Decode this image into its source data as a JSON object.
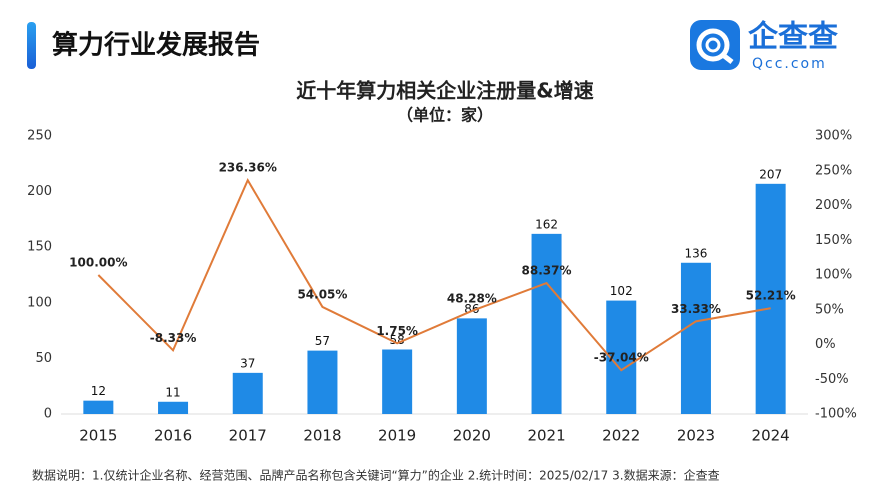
{
  "header": {
    "title": "算力行业发展报告",
    "logo_text": "企查查",
    "logo_url": "Qcc.com"
  },
  "chart_data": {
    "type": "bar_line",
    "title": "近十年算力相关企业注册量&增速",
    "subtitle": "（单位：家）",
    "categories": [
      "2015",
      "2016",
      "2017",
      "2018",
      "2019",
      "2020",
      "2021",
      "2022",
      "2023",
      "2024"
    ],
    "series": [
      {
        "name": "注册量",
        "type": "bar",
        "color": "#1f8ae6",
        "values": [
          12,
          11,
          37,
          57,
          58,
          86,
          162,
          102,
          136,
          207
        ]
      },
      {
        "name": "增速",
        "type": "line",
        "axis": "y2",
        "color": "#e07b39",
        "values": [
          100.0,
          -8.33,
          236.36,
          54.05,
          1.75,
          48.28,
          88.37,
          -37.04,
          33.33,
          52.21
        ],
        "value_labels": [
          "100.00%",
          "-8.33%",
          "236.36%",
          "54.05%",
          "1.75%",
          "48.28%",
          "88.37%",
          "-37.04%",
          "33.33%",
          "52.21%"
        ]
      }
    ],
    "ylim": [
      0,
      250
    ],
    "yticks": [
      0,
      50,
      100,
      150,
      200,
      250
    ],
    "y2lim": [
      -100,
      300
    ],
    "y2ticks": [
      {
        "value": -100,
        "label": "-100%"
      },
      {
        "value": -50,
        "label": "-50%"
      },
      {
        "value": 0,
        "label": "0%"
      },
      {
        "value": 50,
        "label": "50%"
      },
      {
        "value": 100,
        "label": "100%"
      },
      {
        "value": 150,
        "label": "150%"
      },
      {
        "value": 200,
        "label": "200%"
      },
      {
        "value": 250,
        "label": "250%"
      },
      {
        "value": 300,
        "label": "300%"
      }
    ]
  },
  "footnote": "数据说明：1.仅统计企业名称、经营范围、品牌产品名称包含关键词“算力”的企业   2.统计时间：2025/02/17   3.数据来源：企查查"
}
